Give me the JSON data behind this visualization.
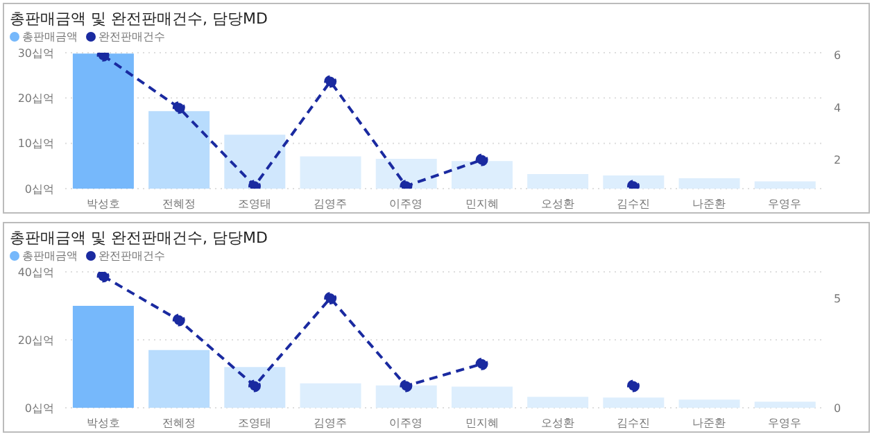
{
  "chart_data": [
    {
      "type": "bar",
      "title": "총판매금액 및 완전판매건수, 담당MD",
      "categories": [
        "박성호",
        "전혜정",
        "조영태",
        "김영주",
        "이주영",
        "민지혜",
        "오성환",
        "김수진",
        "나준환",
        "우영우"
      ],
      "series": [
        {
          "name": "총판매금액",
          "color": "#76b8fb",
          "colors": [
            "#76b8fb",
            "#b8dcfd",
            "#d0e7fd",
            "#ddeefd",
            "#ddeefd",
            "#ddeefd",
            "#ddeefd",
            "#ddeefd",
            "#ddeefd",
            "#ddeefd"
          ],
          "values": [
            29.8,
            17.1,
            11.9,
            7.1,
            6.6,
            6.1,
            3.2,
            2.9,
            2.3,
            1.6
          ]
        },
        {
          "name": "완전판매건수",
          "type": "line",
          "axis": "y2",
          "color": "#1a2aa0",
          "values": [
            6,
            4,
            1,
            5,
            1,
            2,
            null,
            1,
            null,
            null
          ]
        }
      ],
      "ylim": [
        0,
        30
      ],
      "yticks": [
        {
          "value": 0,
          "label": "0십억"
        },
        {
          "value": 10,
          "label": "10십억"
        },
        {
          "value": 20,
          "label": "20십억"
        },
        {
          "value": 30,
          "label": "30십억"
        }
      ],
      "y2lim": [
        0.9,
        6.1
      ],
      "y2ticks": [
        2,
        4,
        6
      ],
      "grid": "y",
      "legend": "top left",
      "marker": "circle",
      "line_style": "dashed"
    },
    {
      "type": "bar",
      "title": "총판매금액 및 완전판매건수, 담당MD",
      "categories": [
        "박성호",
        "전혜정",
        "조영태",
        "김영주",
        "이주영",
        "민지혜",
        "오성환",
        "김수진",
        "나준환",
        "우영우"
      ],
      "series": [
        {
          "name": "총판매금액",
          "color": "#76b8fb",
          "colors": [
            "#76b8fb",
            "#b8dcfd",
            "#d0e7fd",
            "#ddeefd",
            "#ddeefd",
            "#ddeefd",
            "#ddeefd",
            "#ddeefd",
            "#ddeefd",
            "#ddeefd"
          ],
          "values": [
            30,
            17,
            12,
            7.2,
            6.6,
            6.2,
            3.2,
            3,
            2.4,
            1.8
          ]
        },
        {
          "name": "완전판매건수",
          "type": "line",
          "axis": "y2",
          "color": "#1a2aa0",
          "values": [
            6,
            4,
            1,
            5,
            1,
            2,
            null,
            1,
            null,
            null
          ]
        }
      ],
      "ylim": [
        0,
        40
      ],
      "yticks": [
        {
          "value": 0,
          "label": "0십억"
        },
        {
          "value": 20,
          "label": "20십억"
        },
        {
          "value": 40,
          "label": "40십억"
        }
      ],
      "y2lim": [
        0,
        6.2
      ],
      "y2ticks": [
        0,
        5
      ],
      "grid": "y",
      "legend": "top left",
      "marker": "circle",
      "line_style": "dashed"
    }
  ]
}
